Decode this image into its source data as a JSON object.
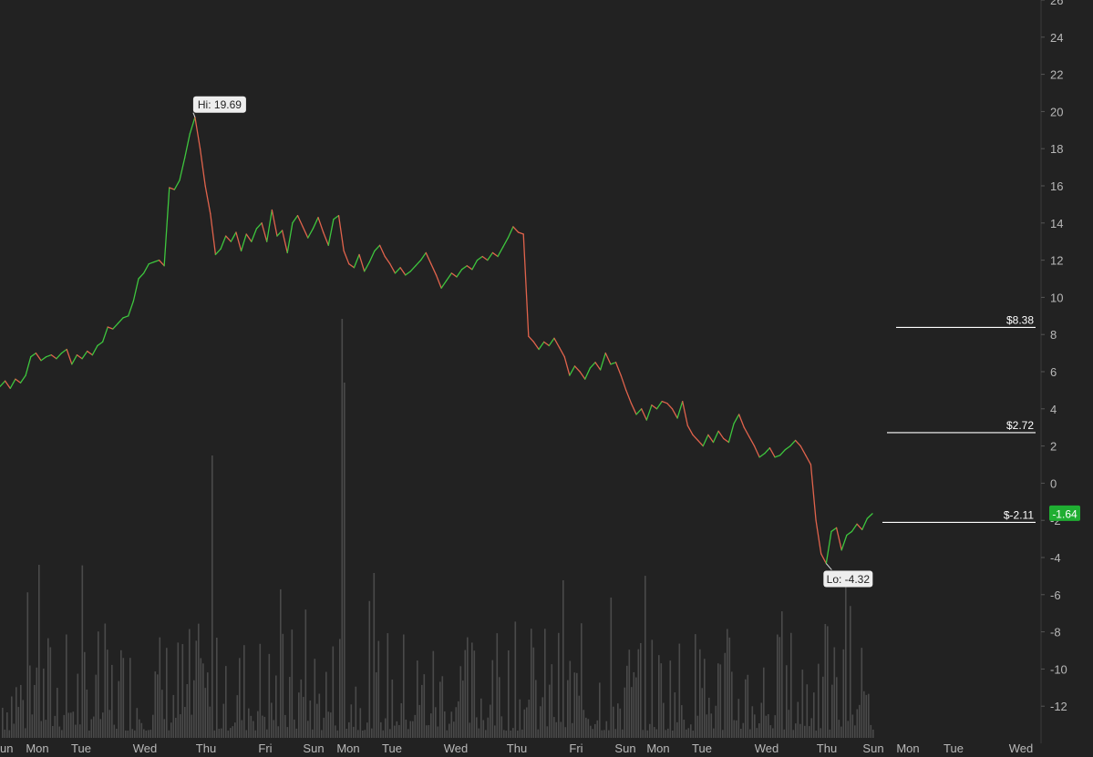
{
  "chart_data": {
    "type": "line",
    "y_axis": {
      "ticks": [
        26,
        24,
        22,
        20,
        18,
        16,
        14,
        12,
        10,
        8,
        6,
        4,
        2,
        0,
        -2,
        -4,
        -6,
        -8,
        -10,
        -12
      ],
      "range": [
        -14,
        26
      ]
    },
    "x_axis": {
      "tick_labels": [
        "un",
        "Mon",
        "Tue",
        "Wed",
        "Thu",
        "Fri",
        "Sun",
        "Mon",
        "Tue",
        "Wed",
        "Thu",
        "Fri",
        "Sun",
        "Mon",
        "Tue",
        "Wed",
        "Thu",
        "Sun",
        "Mon",
        "Tue",
        "Wed"
      ]
    },
    "series": [
      {
        "values": [
          5.2,
          5.5,
          5.1,
          5.6,
          5.4,
          5.8,
          6.8,
          7.0,
          6.6,
          6.8,
          6.9,
          6.7,
          7.0,
          7.2,
          6.4,
          6.9,
          6.7,
          7.1,
          6.9,
          7.4,
          7.6,
          8.4,
          8.3,
          8.6,
          8.9,
          9.0,
          9.8,
          11.0,
          11.3,
          11.8,
          11.9,
          12.0,
          11.7,
          15.9,
          15.8,
          16.3,
          17.5,
          18.8,
          19.69,
          18.0,
          16.0,
          14.5,
          12.3,
          12.6,
          13.3,
          13.0,
          13.5,
          12.5,
          13.4,
          13.0,
          13.7,
          14.0,
          13.0,
          14.7,
          13.3,
          13.6,
          12.4,
          14.0,
          14.4,
          13.8,
          13.2,
          13.7,
          14.3,
          13.5,
          12.8,
          14.2,
          14.4,
          12.5,
          11.8,
          11.6,
          12.3,
          11.4,
          11.9,
          12.5,
          12.8,
          12.2,
          11.8,
          11.3,
          11.6,
          11.2,
          11.4,
          11.7,
          12.0,
          12.4,
          11.8,
          11.2,
          10.5,
          10.9,
          11.3,
          11.1,
          11.5,
          11.7,
          11.5,
          12.0,
          12.2,
          12.0,
          12.4,
          12.2,
          12.7,
          13.2,
          13.8,
          13.5,
          13.4,
          7.9,
          7.6,
          7.2,
          7.6,
          7.4,
          7.8,
          7.3,
          6.8,
          5.8,
          6.3,
          6.0,
          5.6,
          6.2,
          6.5,
          6.1,
          7.0,
          6.4,
          6.5,
          5.8,
          5.0,
          4.3,
          3.7,
          4.0,
          3.4,
          4.2,
          4.0,
          4.4,
          4.3,
          4.0,
          3.5,
          4.4,
          3.1,
          2.6,
          2.3,
          2.0,
          2.6,
          2.2,
          2.8,
          2.4,
          2.2,
          3.2,
          3.7,
          3.0,
          2.5,
          2.0,
          1.4,
          1.6,
          1.9,
          1.4,
          1.5,
          1.8,
          2.0,
          2.3,
          2.0,
          1.5,
          1.0,
          -2.0,
          -3.8,
          -4.32,
          -2.6,
          -2.4,
          -3.6,
          -2.8,
          -2.6,
          -2.2,
          -2.5,
          -1.9,
          -1.64
        ]
      }
    ],
    "annotations": {
      "high_label": "Hi: 19.69",
      "low_label": "Lo: -4.32",
      "current_value_label": "-1.64"
    },
    "price_lines": [
      {
        "label": "$8.38",
        "value": 8.38
      },
      {
        "label": "$2.72",
        "value": 2.72
      },
      {
        "label": "$-2.11",
        "value": -2.11
      }
    ],
    "volume_bars_present": true,
    "colors": {
      "background": "#222222",
      "up": "#3ec63e",
      "down": "#e0634c",
      "axis_text": "#b8b8b8",
      "volume": "#4a4a4a",
      "current_badge": "#1fae32",
      "price_line": "#ffffff"
    }
  }
}
